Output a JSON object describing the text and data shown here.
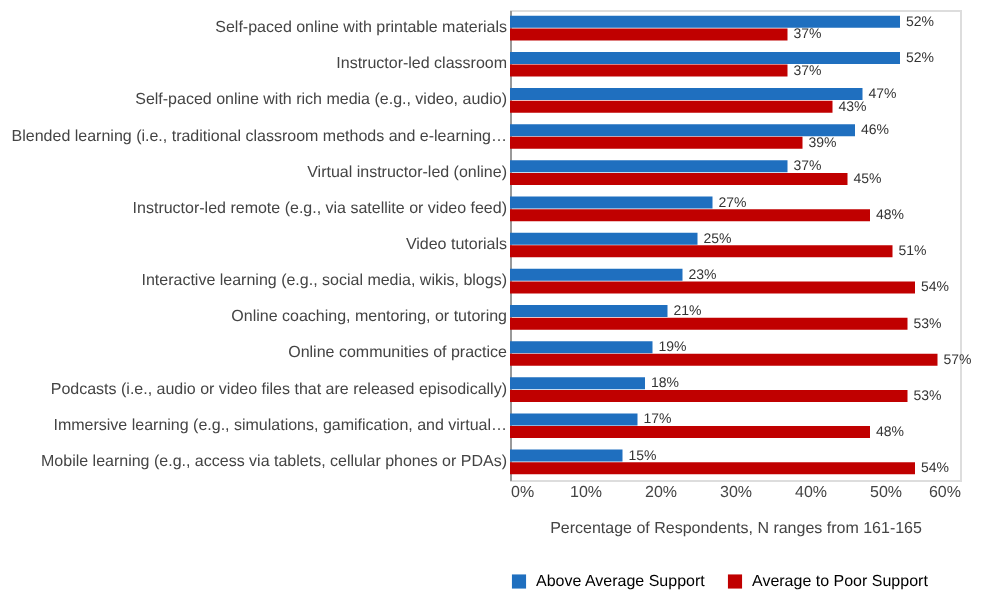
{
  "chart_data": {
    "type": "bar",
    "orientation": "horizontal",
    "xlabel": "Percentage of Respondents, N ranges from 161-165",
    "categories": [
      "Self-paced online with printable materials",
      "Instructor-led classroom",
      "Self-paced online with rich media (e.g., video, audio)",
      "Blended learning (i.e., traditional classroom methods and e-learning…",
      "Virtual instructor-led (online)",
      "Instructor-led remote (e.g., via satellite or video feed)",
      "Video tutorials",
      "Interactive learning (e.g., social media, wikis, blogs)",
      "Online coaching, mentoring, or tutoring",
      "Online communities of practice",
      "Podcasts (i.e., audio or video files that are released episodically)",
      "Immersive learning (e.g., simulations, gamification, and virtual…",
      "Mobile learning (e.g., access via tablets, cellular phones or PDAs)"
    ],
    "series": [
      {
        "name": "Above Average Support",
        "color": "#1f6fbf",
        "values": [
          52,
          52,
          47,
          46,
          37,
          27,
          25,
          23,
          21,
          19,
          18,
          17,
          15
        ],
        "value_labels": [
          "52%",
          "52%",
          "47%",
          "46%",
          "37%",
          "27%",
          "25%",
          "23%",
          "21%",
          "19%",
          "18%",
          "17%",
          "15%"
        ]
      },
      {
        "name": "Average to Poor Support",
        "color": "#c00000",
        "values": [
          37,
          37,
          43,
          39,
          45,
          48,
          51,
          54,
          53,
          57,
          53,
          48,
          54
        ],
        "value_labels": [
          "37%",
          "37%",
          "43%",
          "39%",
          "45%",
          "48%",
          "51%",
          "54%",
          "53%",
          "57%",
          "53%",
          "48%",
          "54%"
        ]
      }
    ],
    "xlim": [
      0,
      60
    ],
    "xticks": [
      {
        "value": 0,
        "label": "0%"
      },
      {
        "value": 10,
        "label": "10%"
      },
      {
        "value": 20,
        "label": "20%"
      },
      {
        "value": 30,
        "label": "30%"
      },
      {
        "value": 40,
        "label": "40%"
      },
      {
        "value": 50,
        "label": "50%"
      },
      {
        "value": 60,
        "label": "60%"
      }
    ],
    "grid": false,
    "legend": "bottom"
  }
}
